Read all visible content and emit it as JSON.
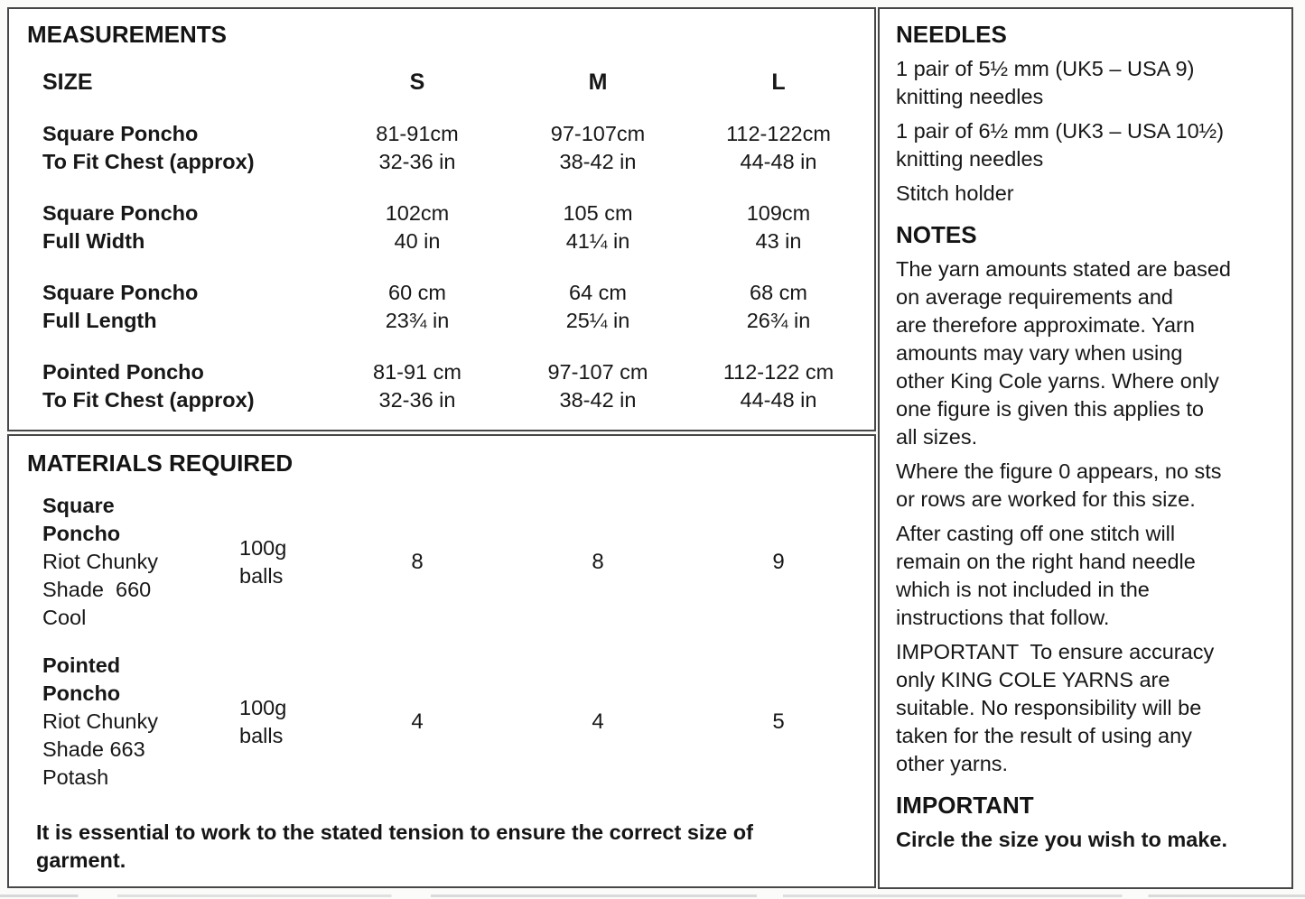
{
  "colors": {
    "text": "#171717",
    "border": "#474747",
    "background": "#ffffff"
  },
  "measurements": {
    "title": "MEASUREMENTS",
    "size_label": "SIZE",
    "columns": {
      "s": "S",
      "m": "M",
      "l": "L"
    },
    "rows": [
      {
        "label": "Square Poncho\nTo Fit Chest (approx)",
        "s": "81-91cm\n32-36 in",
        "m": "97-107cm\n38-42 in",
        "l": "112-122cm\n44-48 in"
      },
      {
        "label": "Square Poncho\nFull Width",
        "s": "102cm\n40 in",
        "m": "105 cm\n41¼ in",
        "l": "109cm\n43 in"
      },
      {
        "label": "Square Poncho\nFull Length",
        "s": "60 cm\n23¾ in",
        "m": "64 cm\n25¼ in",
        "l": "68 cm\n26¾ in"
      },
      {
        "label": "Pointed Poncho\nTo Fit Chest (approx)",
        "s": "81-91 cm\n32-36 in",
        "m": "97-107 cm\n38-42 in",
        "l": "112-122 cm\n44-48 in"
      }
    ]
  },
  "materials": {
    "title": "MATERIALS REQUIRED",
    "rows": [
      {
        "name": "Square\nPoncho",
        "details": "Riot Chunky\nShade  660\nCool",
        "unit": "100g\nballs",
        "s": "8",
        "m": "8",
        "l": "9"
      },
      {
        "name": "Pointed\nPoncho",
        "details": "Riot Chunky\nShade 663\nPotash",
        "unit": "100g\nballs",
        "s": "4",
        "m": "4",
        "l": "5"
      }
    ],
    "footnote": "It is essential to work to the stated tension to ensure the correct size of\ngarment."
  },
  "needles": {
    "title": "NEEDLES",
    "items": [
      "1 pair of 5½ mm (UK5 – USA 9)\nknitting needles",
      "1 pair of 6½ mm (UK3 – USA 10½)\nknitting needles",
      "Stitch holder"
    ]
  },
  "notes": {
    "title": "NOTES",
    "paragraphs": [
      "The yarn amounts stated are based\non average requirements and\nare therefore approximate. Yarn\namounts may vary when using\nother King Cole yarns. Where only\none figure is given this applies to\nall sizes.",
      "Where the figure 0 appears, no sts\nor rows are worked for this size.",
      "After casting off one stitch will\nremain on the right hand needle\nwhich is not included in the\ninstructions that follow.",
      "IMPORTANT  To ensure accuracy\nonly KING COLE YARNS are\nsuitable. No responsibility will be\ntaken for the result of using any\nother yarns."
    ]
  },
  "important": {
    "title": "IMPORTANT",
    "text": "Circle the size you wish to make."
  }
}
